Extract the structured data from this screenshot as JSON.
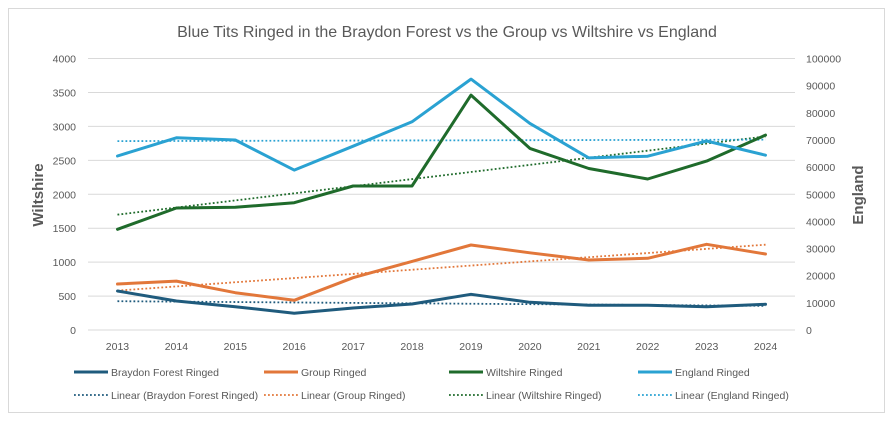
{
  "chart_data": {
    "type": "line",
    "title": "Blue Tits Ringed in the Braydon Forest vs the Group vs Wiltshire vs England",
    "xlabel": "",
    "ylabel": "Wiltshire",
    "y2label": "England",
    "ylim": [
      0,
      4000
    ],
    "y2lim": [
      0,
      100000
    ],
    "yticks": [
      "0",
      "500",
      "1000",
      "1500",
      "2000",
      "2500",
      "3000",
      "3500",
      "4000"
    ],
    "y2ticks": [
      "0",
      "10000",
      "20000",
      "30000",
      "40000",
      "50000",
      "60000",
      "70000",
      "80000",
      "90000",
      "100000"
    ],
    "grid": true,
    "legend_position": "bottom",
    "categories": [
      "2013",
      "2014",
      "2015",
      "2016",
      "2017",
      "2018",
      "2019",
      "2020",
      "2021",
      "2022",
      "2023",
      "2024"
    ],
    "series": [
      {
        "name": "Braydon Forest Ringed",
        "axis": "left",
        "color": "#1f5b7d",
        "values": [
          574,
          427,
          343,
          246,
          324,
          383,
          526,
          408,
          364,
          364,
          343,
          378
        ]
      },
      {
        "name": "Group Ringed",
        "axis": "left",
        "color": "#e2773a",
        "values": [
          677,
          721,
          550,
          437,
          770,
          1010,
          1252,
          1138,
          1031,
          1056,
          1262,
          1119
        ]
      },
      {
        "name": "Wiltshire Ringed",
        "axis": "left",
        "color": "#1f6b2b",
        "values": [
          1483,
          1797,
          1807,
          1875,
          2121,
          2121,
          3461,
          2676,
          2380,
          2224,
          2489,
          2872
        ]
      },
      {
        "name": "England Ringed",
        "axis": "right",
        "color": "#2aa2d2",
        "values": [
          64100,
          70800,
          70000,
          58900,
          67700,
          76700,
          92400,
          76100,
          63400,
          64000,
          69600,
          64400
        ]
      }
    ],
    "trendlines": [
      {
        "name": "Linear (Braydon Forest Ringed)",
        "of": "Braydon Forest Ringed",
        "type": "linear",
        "color": "#1f5b7d"
      },
      {
        "name": "Linear (Group Ringed)",
        "of": "Group Ringed",
        "type": "linear",
        "color": "#e2773a"
      },
      {
        "name": "Linear (Wiltshire Ringed)",
        "of": "Wiltshire Ringed",
        "type": "linear",
        "color": "#1f6b2b"
      },
      {
        "name": "Linear (England Ringed)",
        "of": "England Ringed",
        "type": "linear",
        "color": "#2aa2d2"
      }
    ]
  }
}
